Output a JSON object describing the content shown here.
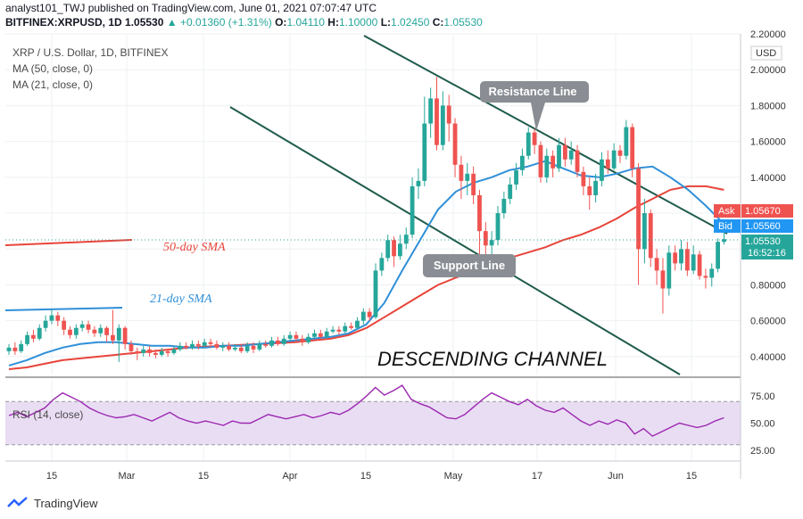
{
  "header": {
    "publisher_line": "analyst101_TWJ published on TradingView.com, June 01, 2021 07:07:47 UTC",
    "symbol": "BITFINEX:XRPUSD, 1D",
    "last": "1.05530",
    "change": "+0.01360 (+1.31%)",
    "o_label": "O:",
    "o": "1.04110",
    "h_label": "H:",
    "h": "1.10000",
    "l_label": "L:",
    "l": "1.02450",
    "c_label": "C:",
    "c": "1.05530"
  },
  "legend": {
    "title": "XRP / U.S. Dollar, 1D, BITFINEX",
    "ma50": "MA (50, close, 0)",
    "ma21": "MA (21, close, 0)",
    "rsi": "RSI (14, close)"
  },
  "colors": {
    "up": "#26a69a",
    "down": "#ef5350",
    "ma50": "#e8443a",
    "ma21": "#2f8fd8",
    "channel": "#1f5b4c",
    "rsi_line": "#9c27b0",
    "rsi_band": "#e9ddf4"
  },
  "annotations": {
    "resistance": "Resistance Line",
    "support": "Support Line",
    "sma50": "50-day SMA",
    "sma21": "21-day SMA",
    "channel": "DESCENDING CHANNEL"
  },
  "price_axis": {
    "unit": "USD",
    "ticks": [
      "0.40000",
      "0.60000",
      "0.80000",
      "1.00000",
      "1.20000",
      "1.40000",
      "1.60000",
      "1.80000",
      "2.00000",
      "2.20000"
    ],
    "ask_label": "Ask",
    "ask": "1.05670",
    "bid_label": "Bid",
    "bid": "1.05560",
    "last": "1.05530",
    "countdown": "16:52:16"
  },
  "rsi_axis": {
    "ticks": [
      "25.00",
      "50.00",
      "75.00"
    ]
  },
  "time_axis": {
    "ticks": [
      "15",
      "Mar",
      "15",
      "Apr",
      "15",
      "May",
      "17",
      "Jun",
      "15"
    ]
  },
  "branding": {
    "name": "TradingView"
  },
  "chart_data": {
    "type": "candlestick",
    "symbol": "XRPUSD",
    "ylim": [
      0.3,
      2.2
    ],
    "candles": [
      {
        "o": 0.43,
        "c": 0.45,
        "h": 0.47,
        "l": 0.41
      },
      {
        "o": 0.45,
        "c": 0.43,
        "h": 0.48,
        "l": 0.41
      },
      {
        "o": 0.43,
        "c": 0.47,
        "h": 0.49,
        "l": 0.42
      },
      {
        "o": 0.47,
        "c": 0.52,
        "h": 0.54,
        "l": 0.46
      },
      {
        "o": 0.52,
        "c": 0.5,
        "h": 0.55,
        "l": 0.48
      },
      {
        "o": 0.5,
        "c": 0.56,
        "h": 0.58,
        "l": 0.49
      },
      {
        "o": 0.56,
        "c": 0.6,
        "h": 0.63,
        "l": 0.54
      },
      {
        "o": 0.6,
        "c": 0.63,
        "h": 0.66,
        "l": 0.58
      },
      {
        "o": 0.63,
        "c": 0.6,
        "h": 0.65,
        "l": 0.57
      },
      {
        "o": 0.6,
        "c": 0.55,
        "h": 0.62,
        "l": 0.52
      },
      {
        "o": 0.55,
        "c": 0.52,
        "h": 0.57,
        "l": 0.5
      },
      {
        "o": 0.52,
        "c": 0.56,
        "h": 0.58,
        "l": 0.5
      },
      {
        "o": 0.56,
        "c": 0.58,
        "h": 0.6,
        "l": 0.54
      },
      {
        "o": 0.58,
        "c": 0.55,
        "h": 0.6,
        "l": 0.53
      },
      {
        "o": 0.55,
        "c": 0.53,
        "h": 0.57,
        "l": 0.51
      },
      {
        "o": 0.53,
        "c": 0.56,
        "h": 0.58,
        "l": 0.51
      },
      {
        "o": 0.56,
        "c": 0.52,
        "h": 0.57,
        "l": 0.48
      },
      {
        "o": 0.52,
        "c": 0.49,
        "h": 0.66,
        "l": 0.47
      },
      {
        "o": 0.49,
        "c": 0.56,
        "h": 0.58,
        "l": 0.37
      },
      {
        "o": 0.56,
        "c": 0.47,
        "h": 0.57,
        "l": 0.44
      },
      {
        "o": 0.47,
        "c": 0.43,
        "h": 0.49,
        "l": 0.41
      },
      {
        "o": 0.43,
        "c": 0.42,
        "h": 0.45,
        "l": 0.38
      },
      {
        "o": 0.42,
        "c": 0.44,
        "h": 0.46,
        "l": 0.4
      },
      {
        "o": 0.44,
        "c": 0.42,
        "h": 0.46,
        "l": 0.4
      },
      {
        "o": 0.42,
        "c": 0.41,
        "h": 0.44,
        "l": 0.39
      },
      {
        "o": 0.41,
        "c": 0.43,
        "h": 0.45,
        "l": 0.4
      },
      {
        "o": 0.43,
        "c": 0.42,
        "h": 0.44,
        "l": 0.4
      },
      {
        "o": 0.42,
        "c": 0.44,
        "h": 0.46,
        "l": 0.41
      },
      {
        "o": 0.44,
        "c": 0.46,
        "h": 0.48,
        "l": 0.43
      },
      {
        "o": 0.46,
        "c": 0.45,
        "h": 0.48,
        "l": 0.44
      },
      {
        "o": 0.45,
        "c": 0.47,
        "h": 0.49,
        "l": 0.44
      },
      {
        "o": 0.47,
        "c": 0.46,
        "h": 0.49,
        "l": 0.44
      },
      {
        "o": 0.46,
        "c": 0.48,
        "h": 0.5,
        "l": 0.45
      },
      {
        "o": 0.48,
        "c": 0.47,
        "h": 0.5,
        "l": 0.45
      },
      {
        "o": 0.47,
        "c": 0.45,
        "h": 0.49,
        "l": 0.44
      },
      {
        "o": 0.45,
        "c": 0.46,
        "h": 0.48,
        "l": 0.43
      },
      {
        "o": 0.46,
        "c": 0.44,
        "h": 0.48,
        "l": 0.43
      },
      {
        "o": 0.44,
        "c": 0.45,
        "h": 0.47,
        "l": 0.43
      },
      {
        "o": 0.45,
        "c": 0.43,
        "h": 0.47,
        "l": 0.42
      },
      {
        "o": 0.43,
        "c": 0.46,
        "h": 0.48,
        "l": 0.42
      },
      {
        "o": 0.46,
        "c": 0.44,
        "h": 0.48,
        "l": 0.42
      },
      {
        "o": 0.44,
        "c": 0.47,
        "h": 0.49,
        "l": 0.43
      },
      {
        "o": 0.47,
        "c": 0.46,
        "h": 0.49,
        "l": 0.45
      },
      {
        "o": 0.46,
        "c": 0.49,
        "h": 0.51,
        "l": 0.45
      },
      {
        "o": 0.49,
        "c": 0.47,
        "h": 0.51,
        "l": 0.46
      },
      {
        "o": 0.47,
        "c": 0.5,
        "h": 0.52,
        "l": 0.46
      },
      {
        "o": 0.5,
        "c": 0.52,
        "h": 0.54,
        "l": 0.49
      },
      {
        "o": 0.52,
        "c": 0.5,
        "h": 0.54,
        "l": 0.48
      },
      {
        "o": 0.5,
        "c": 0.48,
        "h": 0.52,
        "l": 0.46
      },
      {
        "o": 0.48,
        "c": 0.51,
        "h": 0.53,
        "l": 0.47
      },
      {
        "o": 0.51,
        "c": 0.53,
        "h": 0.55,
        "l": 0.5
      },
      {
        "o": 0.53,
        "c": 0.51,
        "h": 0.55,
        "l": 0.5
      },
      {
        "o": 0.51,
        "c": 0.54,
        "h": 0.56,
        "l": 0.5
      },
      {
        "o": 0.54,
        "c": 0.55,
        "h": 0.57,
        "l": 0.53
      },
      {
        "o": 0.55,
        "c": 0.54,
        "h": 0.57,
        "l": 0.52
      },
      {
        "o": 0.54,
        "c": 0.57,
        "h": 0.59,
        "l": 0.53
      },
      {
        "o": 0.57,
        "c": 0.56,
        "h": 0.59,
        "l": 0.55
      },
      {
        "o": 0.56,
        "c": 0.6,
        "h": 0.62,
        "l": 0.55
      },
      {
        "o": 0.6,
        "c": 0.65,
        "h": 0.67,
        "l": 0.58
      },
      {
        "o": 0.65,
        "c": 0.62,
        "h": 0.67,
        "l": 0.6
      },
      {
        "o": 0.62,
        "c": 0.88,
        "h": 0.92,
        "l": 0.61
      },
      {
        "o": 0.88,
        "c": 0.95,
        "h": 0.98,
        "l": 0.85
      },
      {
        "o": 0.95,
        "c": 1.05,
        "h": 1.08,
        "l": 0.93
      },
      {
        "o": 1.05,
        "c": 0.96,
        "h": 1.07,
        "l": 0.9
      },
      {
        "o": 0.96,
        "c": 1.03,
        "h": 1.08,
        "l": 0.94
      },
      {
        "o": 1.03,
        "c": 1.08,
        "h": 1.12,
        "l": 1.0
      },
      {
        "o": 1.08,
        "c": 1.35,
        "h": 1.4,
        "l": 1.06
      },
      {
        "o": 1.35,
        "c": 1.38,
        "h": 1.45,
        "l": 1.28
      },
      {
        "o": 1.38,
        "c": 1.7,
        "h": 1.85,
        "l": 1.35
      },
      {
        "o": 1.7,
        "c": 1.84,
        "h": 1.9,
        "l": 1.62
      },
      {
        "o": 1.84,
        "c": 1.58,
        "h": 1.96,
        "l": 1.55
      },
      {
        "o": 1.58,
        "c": 1.8,
        "h": 1.88,
        "l": 1.55
      },
      {
        "o": 1.8,
        "c": 1.7,
        "h": 1.86,
        "l": 1.6
      },
      {
        "o": 1.7,
        "c": 1.47,
        "h": 1.73,
        "l": 1.4
      },
      {
        "o": 1.47,
        "c": 1.38,
        "h": 1.52,
        "l": 1.28
      },
      {
        "o": 1.38,
        "c": 1.42,
        "h": 1.48,
        "l": 1.3
      },
      {
        "o": 1.42,
        "c": 1.3,
        "h": 1.46,
        "l": 1.25
      },
      {
        "o": 1.3,
        "c": 1.1,
        "h": 1.33,
        "l": 0.95
      },
      {
        "o": 1.1,
        "c": 1.02,
        "h": 1.15,
        "l": 0.9
      },
      {
        "o": 1.02,
        "c": 1.05,
        "h": 1.1,
        "l": 0.96
      },
      {
        "o": 1.05,
        "c": 1.2,
        "h": 1.24,
        "l": 1.02
      },
      {
        "o": 1.2,
        "c": 1.28,
        "h": 1.32,
        "l": 1.17
      },
      {
        "o": 1.28,
        "c": 1.36,
        "h": 1.4,
        "l": 1.25
      },
      {
        "o": 1.36,
        "c": 1.44,
        "h": 1.48,
        "l": 1.33
      },
      {
        "o": 1.44,
        "c": 1.52,
        "h": 1.56,
        "l": 1.41
      },
      {
        "o": 1.52,
        "c": 1.65,
        "h": 1.68,
        "l": 1.5
      },
      {
        "o": 1.65,
        "c": 1.58,
        "h": 1.67,
        "l": 1.53
      },
      {
        "o": 1.58,
        "c": 1.4,
        "h": 1.6,
        "l": 1.37
      },
      {
        "o": 1.4,
        "c": 1.52,
        "h": 1.56,
        "l": 1.37
      },
      {
        "o": 1.52,
        "c": 1.45,
        "h": 1.55,
        "l": 1.4
      },
      {
        "o": 1.45,
        "c": 1.58,
        "h": 1.62,
        "l": 1.43
      },
      {
        "o": 1.58,
        "c": 1.5,
        "h": 1.62,
        "l": 1.46
      },
      {
        "o": 1.5,
        "c": 1.55,
        "h": 1.6,
        "l": 1.47
      },
      {
        "o": 1.55,
        "c": 1.43,
        "h": 1.58,
        "l": 1.4
      },
      {
        "o": 1.43,
        "c": 1.35,
        "h": 1.46,
        "l": 1.3
      },
      {
        "o": 1.35,
        "c": 1.3,
        "h": 1.4,
        "l": 1.22
      },
      {
        "o": 1.3,
        "c": 1.38,
        "h": 1.42,
        "l": 1.26
      },
      {
        "o": 1.38,
        "c": 1.5,
        "h": 1.54,
        "l": 1.35
      },
      {
        "o": 1.5,
        "c": 1.45,
        "h": 1.55,
        "l": 1.42
      },
      {
        "o": 1.45,
        "c": 1.55,
        "h": 1.59,
        "l": 1.44
      },
      {
        "o": 1.55,
        "c": 1.52,
        "h": 1.58,
        "l": 1.48
      },
      {
        "o": 1.52,
        "c": 1.68,
        "h": 1.72,
        "l": 1.5
      },
      {
        "o": 1.68,
        "c": 1.45,
        "h": 1.7,
        "l": 1.4
      },
      {
        "o": 1.45,
        "c": 1.0,
        "h": 1.48,
        "l": 0.8
      },
      {
        "o": 1.0,
        "c": 1.2,
        "h": 1.28,
        "l": 0.92
      },
      {
        "o": 1.2,
        "c": 0.95,
        "h": 1.22,
        "l": 0.9
      },
      {
        "o": 0.95,
        "c": 0.88,
        "h": 1.0,
        "l": 0.8
      },
      {
        "o": 0.88,
        "c": 0.78,
        "h": 0.95,
        "l": 0.64
      },
      {
        "o": 0.78,
        "c": 0.98,
        "h": 1.02,
        "l": 0.74
      },
      {
        "o": 0.98,
        "c": 0.92,
        "h": 1.02,
        "l": 0.88
      },
      {
        "o": 0.92,
        "c": 1.0,
        "h": 1.05,
        "l": 0.88
      },
      {
        "o": 1.0,
        "c": 0.88,
        "h": 1.04,
        "l": 0.85
      },
      {
        "o": 0.88,
        "c": 0.97,
        "h": 1.02,
        "l": 0.86
      },
      {
        "o": 0.97,
        "c": 0.85,
        "h": 0.99,
        "l": 0.83
      },
      {
        "o": 0.85,
        "c": 0.84,
        "h": 0.89,
        "l": 0.78
      },
      {
        "o": 0.84,
        "c": 0.89,
        "h": 0.92,
        "l": 0.79
      },
      {
        "o": 0.89,
        "c": 1.04,
        "h": 1.06,
        "l": 0.87
      },
      {
        "o": 1.04,
        "c": 1.0553,
        "h": 1.1,
        "l": 1.0245
      }
    ],
    "ma50": [
      0.33,
      0.34,
      0.36,
      0.38,
      0.39,
      0.4,
      0.41,
      0.42,
      0.43,
      0.44,
      0.45,
      0.455,
      0.46,
      0.465,
      0.47,
      0.475,
      0.48,
      0.49,
      0.5,
      0.52,
      0.56,
      0.62,
      0.68,
      0.74,
      0.8,
      0.84,
      0.88,
      0.92,
      0.95,
      0.98,
      1.01,
      1.05,
      1.08,
      1.12,
      1.17,
      1.23,
      1.28,
      1.33,
      1.35,
      1.35,
      1.33
    ],
    "ma21": [
      0.35,
      0.38,
      0.42,
      0.45,
      0.47,
      0.48,
      0.48,
      0.47,
      0.46,
      0.46,
      0.45,
      0.45,
      0.46,
      0.46,
      0.47,
      0.48,
      0.49,
      0.5,
      0.51,
      0.53,
      0.58,
      0.7,
      0.88,
      1.05,
      1.22,
      1.32,
      1.37,
      1.4,
      1.44,
      1.46,
      1.49,
      1.45,
      1.41,
      1.4,
      1.42,
      1.45,
      1.46,
      1.4,
      1.33,
      1.24,
      1.14
    ],
    "rsi": [
      57,
      60,
      56,
      60,
      64,
      72,
      78,
      74,
      70,
      64,
      60,
      57,
      55,
      56,
      58,
      55,
      52,
      56,
      60,
      55,
      52,
      50,
      52,
      50,
      48,
      52,
      50,
      50,
      54,
      58,
      56,
      54,
      56,
      58,
      55,
      57,
      60,
      58,
      62,
      68,
      75,
      83,
      76,
      80,
      85,
      72,
      68,
      65,
      60,
      55,
      54,
      58,
      65,
      72,
      78,
      74,
      70,
      67,
      72,
      66,
      62,
      60,
      64,
      58,
      52,
      48,
      52,
      49,
      53,
      50,
      40,
      45,
      38,
      42,
      46,
      50,
      48,
      46,
      48,
      52,
      55
    ],
    "rsi_levels": [
      30,
      70
    ],
    "x_ticks": [
      "15",
      "Mar",
      "15",
      "Apr",
      "15",
      "May",
      "17",
      "Jun",
      "15"
    ]
  }
}
